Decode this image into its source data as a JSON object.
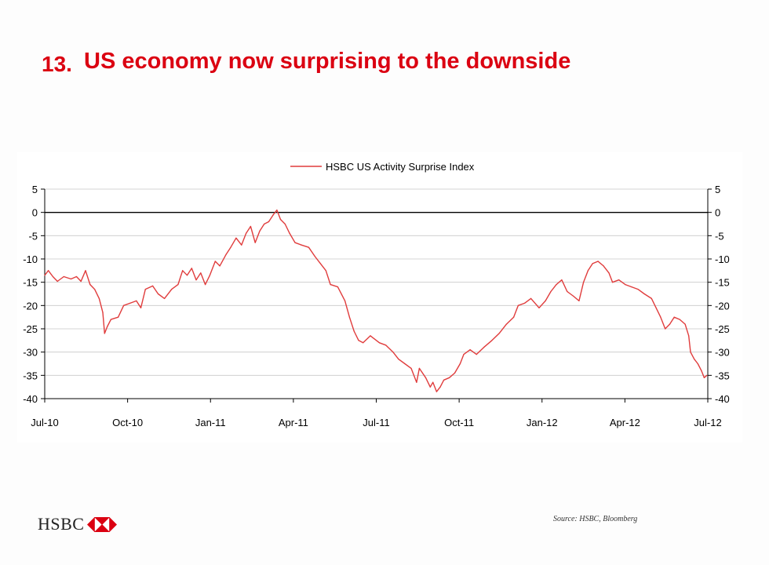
{
  "slide": {
    "number": "13.",
    "title": "US economy now surprising to the downside",
    "source": "Source: HSBC, Bloomberg",
    "logo_text": "HSBC",
    "brand_color": "#db0011"
  },
  "chart_data": {
    "type": "line",
    "title": "",
    "xlabel": "",
    "ylabel": "",
    "ylim": [
      -40,
      5
    ],
    "yticks": [
      5,
      0,
      -5,
      -10,
      -15,
      -20,
      -25,
      -30,
      -35,
      -40
    ],
    "xticks": [
      "Jul-10",
      "Oct-10",
      "Jan-11",
      "Apr-11",
      "Jul-11",
      "Oct-11",
      "Jan-12",
      "Apr-12",
      "Jul-12"
    ],
    "dual_y_axis": true,
    "grid": "horizontal",
    "zero_line": true,
    "legend_position": "top-center",
    "series": [
      {
        "name": "HSBC US Activity Surprise Index",
        "color": "#e03c3c",
        "points": [
          [
            "2010-07-01",
            -13.5
          ],
          [
            "2010-07-05",
            -12.5
          ],
          [
            "2010-07-10",
            -13.8
          ],
          [
            "2010-07-15",
            -14.8
          ],
          [
            "2010-07-22",
            -13.8
          ],
          [
            "2010-07-30",
            -14.3
          ],
          [
            "2010-08-05",
            -13.8
          ],
          [
            "2010-08-10",
            -14.8
          ],
          [
            "2010-08-15",
            -12.5
          ],
          [
            "2010-08-20",
            -15.5
          ],
          [
            "2010-08-25",
            -16.5
          ],
          [
            "2010-08-30",
            -18.5
          ],
          [
            "2010-09-03",
            -21.5
          ],
          [
            "2010-09-05",
            -26.0
          ],
          [
            "2010-09-08",
            -24.5
          ],
          [
            "2010-09-12",
            -23.0
          ],
          [
            "2010-09-20",
            -22.5
          ],
          [
            "2010-09-26",
            -20.0
          ],
          [
            "2010-10-03",
            -19.5
          ],
          [
            "2010-10-10",
            -19.0
          ],
          [
            "2010-10-15",
            -20.5
          ],
          [
            "2010-10-20",
            -16.5
          ],
          [
            "2010-10-28",
            -15.8
          ],
          [
            "2010-11-03",
            -17.5
          ],
          [
            "2010-11-10",
            -18.5
          ],
          [
            "2010-11-18",
            -16.5
          ],
          [
            "2010-11-25",
            -15.5
          ],
          [
            "2010-11-30",
            -12.5
          ],
          [
            "2010-12-05",
            -13.5
          ],
          [
            "2010-12-10",
            -12.0
          ],
          [
            "2010-12-15",
            -14.5
          ],
          [
            "2010-12-20",
            -13.0
          ],
          [
            "2010-12-25",
            -15.5
          ],
          [
            "2010-12-30",
            -13.5
          ],
          [
            "2011-01-05",
            -10.5
          ],
          [
            "2011-01-10",
            -11.5
          ],
          [
            "2011-01-17",
            -9.0
          ],
          [
            "2011-01-22",
            -7.5
          ],
          [
            "2011-01-28",
            -5.5
          ],
          [
            "2011-02-03",
            -7.0
          ],
          [
            "2011-02-08",
            -4.5
          ],
          [
            "2011-02-13",
            -3.0
          ],
          [
            "2011-02-18",
            -6.5
          ],
          [
            "2011-02-23",
            -4.0
          ],
          [
            "2011-02-28",
            -2.5
          ],
          [
            "2011-03-05",
            -2.0
          ],
          [
            "2011-03-10",
            -0.5
          ],
          [
            "2011-03-14",
            0.5
          ],
          [
            "2011-03-18",
            -1.5
          ],
          [
            "2011-03-23",
            -2.5
          ],
          [
            "2011-03-28",
            -4.5
          ],
          [
            "2011-04-03",
            -6.5
          ],
          [
            "2011-04-10",
            -7.0
          ],
          [
            "2011-04-18",
            -7.5
          ],
          [
            "2011-04-25",
            -9.5
          ],
          [
            "2011-05-01",
            -11.0
          ],
          [
            "2011-05-07",
            -12.5
          ],
          [
            "2011-05-12",
            -15.5
          ],
          [
            "2011-05-20",
            -16.0
          ],
          [
            "2011-05-28",
            -19.0
          ],
          [
            "2011-06-02",
            -22.5
          ],
          [
            "2011-06-07",
            -25.5
          ],
          [
            "2011-06-12",
            -27.5
          ],
          [
            "2011-06-17",
            -28.0
          ],
          [
            "2011-06-25",
            -26.5
          ],
          [
            "2011-07-05",
            -28.0
          ],
          [
            "2011-07-12",
            -28.5
          ],
          [
            "2011-07-20",
            -30.0
          ],
          [
            "2011-07-26",
            -31.5
          ],
          [
            "2011-08-02",
            -32.5
          ],
          [
            "2011-08-09",
            -33.5
          ],
          [
            "2011-08-15",
            -36.5
          ],
          [
            "2011-08-18",
            -33.5
          ],
          [
            "2011-08-25",
            -35.5
          ],
          [
            "2011-08-30",
            -37.5
          ],
          [
            "2011-09-02",
            -36.5
          ],
          [
            "2011-09-06",
            -38.5
          ],
          [
            "2011-09-10",
            -37.5
          ],
          [
            "2011-09-14",
            -36.0
          ],
          [
            "2011-09-20",
            -35.5
          ],
          [
            "2011-09-26",
            -34.5
          ],
          [
            "2011-10-02",
            -32.5
          ],
          [
            "2011-10-06",
            -30.5
          ],
          [
            "2011-10-13",
            -29.5
          ],
          [
            "2011-10-20",
            -30.5
          ],
          [
            "2011-10-28",
            -29.0
          ],
          [
            "2011-11-06",
            -27.5
          ],
          [
            "2011-11-14",
            -26.0
          ],
          [
            "2011-11-22",
            -24.0
          ],
          [
            "2011-11-30",
            -22.5
          ],
          [
            "2011-12-05",
            -20.0
          ],
          [
            "2011-12-12",
            -19.5
          ],
          [
            "2011-12-19",
            -18.5
          ],
          [
            "2011-12-28",
            -20.5
          ],
          [
            "2012-01-04",
            -19.0
          ],
          [
            "2012-01-10",
            -17.0
          ],
          [
            "2012-01-16",
            -15.5
          ],
          [
            "2012-01-22",
            -14.5
          ],
          [
            "2012-01-28",
            -17.0
          ],
          [
            "2012-02-04",
            -18.0
          ],
          [
            "2012-02-10",
            -19.0
          ],
          [
            "2012-02-15",
            -15.0
          ],
          [
            "2012-02-20",
            -12.5
          ],
          [
            "2012-02-25",
            -11.0
          ],
          [
            "2012-03-02",
            -10.5
          ],
          [
            "2012-03-08",
            -11.5
          ],
          [
            "2012-03-14",
            -13.0
          ],
          [
            "2012-03-18",
            -15.0
          ],
          [
            "2012-03-25",
            -14.5
          ],
          [
            "2012-04-01",
            -15.5
          ],
          [
            "2012-04-08",
            -16.0
          ],
          [
            "2012-04-15",
            -16.5
          ],
          [
            "2012-04-22",
            -17.5
          ],
          [
            "2012-04-30",
            -18.5
          ],
          [
            "2012-05-05",
            -20.5
          ],
          [
            "2012-05-10",
            -22.5
          ],
          [
            "2012-05-15",
            -25.0
          ],
          [
            "2012-05-20",
            -24.0
          ],
          [
            "2012-05-25",
            -22.5
          ],
          [
            "2012-05-31",
            -23.0
          ],
          [
            "2012-06-06",
            -24.0
          ],
          [
            "2012-06-10",
            -26.5
          ],
          [
            "2012-06-12",
            -30.0
          ],
          [
            "2012-06-16",
            -31.5
          ],
          [
            "2012-06-20",
            -32.5
          ],
          [
            "2012-06-24",
            -34.0
          ],
          [
            "2012-06-27",
            -35.5
          ],
          [
            "2012-06-30",
            -35.0
          ]
        ]
      }
    ]
  }
}
